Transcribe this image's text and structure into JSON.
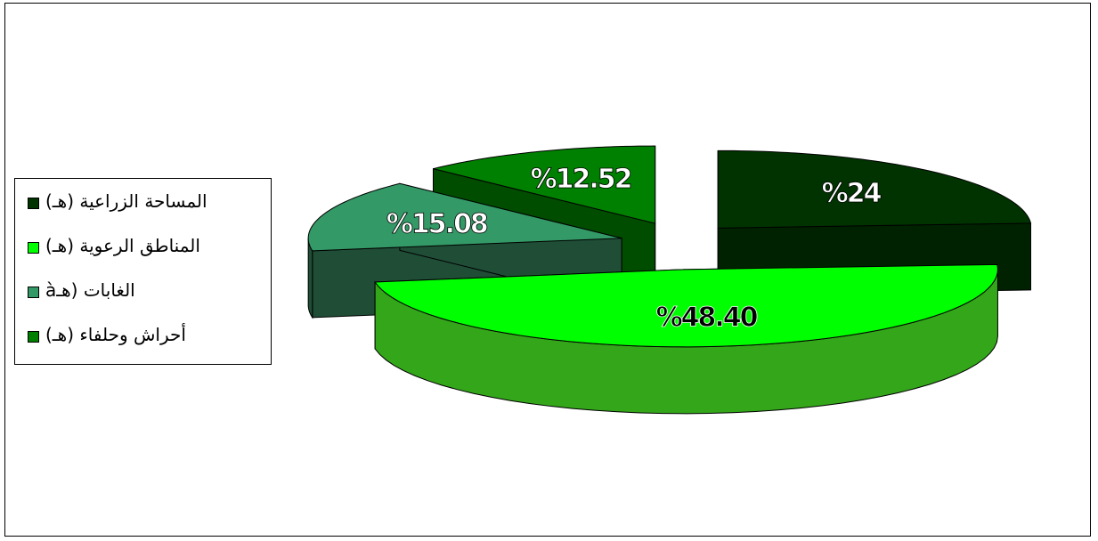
{
  "chart_data": {
    "type": "pie",
    "title": "",
    "legend_position": "left",
    "slices": [
      {
        "label": "المساحة الزراعية (هـ)",
        "value": 24,
        "display": "%24",
        "color": "#003300",
        "side_color": "#002200"
      },
      {
        "label": "المناطق الرعوية (هـ)",
        "value": 48.4,
        "display": "%48.40",
        "color": "#00ff00",
        "side_color": "#33a61a"
      },
      {
        "label": "الغابات (هـà",
        "value": 15.08,
        "display": "%15.08",
        "color": "#339966",
        "side_color": "#1f4d36"
      },
      {
        "label": "أحراش وحلفاء (هـ)",
        "value": 12.52,
        "display": "%12.52",
        "color": "#008000",
        "side_color": "#004d00"
      }
    ]
  }
}
